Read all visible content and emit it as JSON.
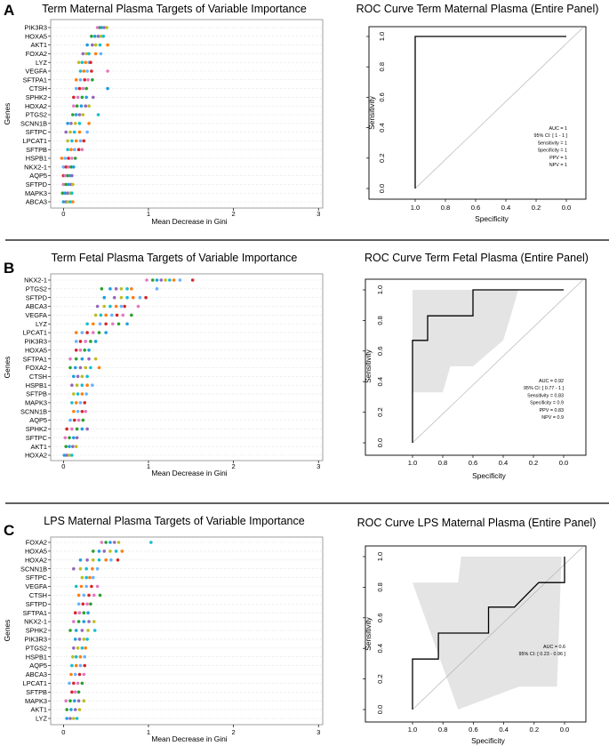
{
  "chart_data": [
    {
      "type": "scatter",
      "panel_label": "A",
      "title": "Term Maternal Plasma Targets of Variable Importance",
      "xlabel": "Mean Decrease in Gini",
      "ylabel": "Genes",
      "xlim": [
        -0.15,
        3.05
      ],
      "x_ticks": [
        "0",
        "1",
        "2",
        "3"
      ],
      "genes": [
        {
          "name": "PIK3R3",
          "values": [
            0.4,
            0.43,
            0.45,
            0.48,
            0.51
          ]
        },
        {
          "name": "HOXA5",
          "values": [
            0.33,
            0.37,
            0.41,
            0.44,
            0.47
          ]
        },
        {
          "name": "AKT1",
          "values": [
            0.28,
            0.34,
            0.38,
            0.43,
            0.52
          ]
        },
        {
          "name": "FOXA2",
          "values": [
            0.23,
            0.27,
            0.3,
            0.38,
            0.44
          ]
        },
        {
          "name": "LYZ",
          "values": [
            0.18,
            0.22,
            0.26,
            0.3,
            0.32
          ]
        },
        {
          "name": "VEGFA",
          "values": [
            0.2,
            0.24,
            0.28,
            0.33,
            0.52
          ]
        },
        {
          "name": "SFTPA1",
          "values": [
            0.15,
            0.2,
            0.25,
            0.29,
            0.34
          ]
        },
        {
          "name": "CTSH",
          "values": [
            0.15,
            0.19,
            0.23,
            0.27,
            0.52
          ]
        },
        {
          "name": "SPHK2",
          "values": [
            0.12,
            0.17,
            0.22,
            0.27,
            0.35
          ]
        },
        {
          "name": "HOXA2",
          "values": [
            0.12,
            0.16,
            0.21,
            0.26,
            0.3
          ]
        },
        {
          "name": "PTGS2",
          "values": [
            0.11,
            0.15,
            0.19,
            0.23,
            0.41
          ]
        },
        {
          "name": "SCNN1B",
          "values": [
            0.05,
            0.09,
            0.14,
            0.19,
            0.3
          ]
        },
        {
          "name": "SFTPC",
          "values": [
            0.03,
            0.08,
            0.13,
            0.19,
            0.28
          ]
        },
        {
          "name": "LPCAT1",
          "values": [
            0.05,
            0.1,
            0.15,
            0.2,
            0.24
          ]
        },
        {
          "name": "SFTPB",
          "values": [
            0.05,
            0.09,
            0.13,
            0.18,
            0.22
          ]
        },
        {
          "name": "HSPB1",
          "values": [
            -0.02,
            0.02,
            0.06,
            0.1,
            0.14
          ]
        },
        {
          "name": "NKX2-1",
          "values": [
            0.0,
            0.03,
            0.06,
            0.09,
            0.12
          ]
        },
        {
          "name": "AQP5",
          "values": [
            0.0,
            0.02,
            0.05,
            0.08,
            0.1
          ]
        },
        {
          "name": "SFTPD",
          "values": [
            0.0,
            0.03,
            0.06,
            0.09,
            0.11
          ]
        },
        {
          "name": "MAPK3",
          "values": [
            -0.01,
            0.02,
            0.05,
            0.08,
            0.1
          ]
        },
        {
          "name": "ABCA3",
          "values": [
            0.0,
            0.03,
            0.05,
            0.08,
            0.11
          ]
        }
      ]
    },
    {
      "type": "line",
      "panel_label": "",
      "title": "ROC Curve Term Maternal Plasma (Entire Panel)",
      "xlabel": "Specificity",
      "ylabel": "Sensitivity",
      "x_ticks": [
        "1.0",
        "0.8",
        "0.6",
        "0.4",
        "0.2",
        "0.0"
      ],
      "y_ticks": [
        "0.0",
        "0.2",
        "0.4",
        "0.6",
        "0.8",
        "1.0"
      ],
      "curve": [
        [
          1.0,
          0.0
        ],
        [
          1.0,
          1.0
        ],
        [
          0.0,
          1.0
        ]
      ],
      "ci_band": [],
      "stats": [
        "AUC = 1",
        "95% CI: [ 1 - 1 ]",
        "Sensitivity = 1",
        "Specificity = 1",
        "PPV = 1",
        "NPV = 1"
      ]
    },
    {
      "type": "scatter",
      "panel_label": "B",
      "title": "Term Fetal Plasma Targets of Variable Importance",
      "xlabel": "Mean Decrease in Gini",
      "ylabel": "Genes",
      "xlim": [
        -0.15,
        3.05
      ],
      "x_ticks": [
        "0",
        "1",
        "2",
        "3"
      ],
      "genes": [
        {
          "name": "NKX2-1",
          "values": [
            0.98,
            1.05,
            1.1,
            1.15,
            1.2,
            1.25,
            1.3,
            1.37,
            1.52
          ]
        },
        {
          "name": "PTGS2",
          "values": [
            0.45,
            0.55,
            0.62,
            0.68,
            0.75,
            0.8,
            1.1
          ]
        },
        {
          "name": "SFTPD",
          "values": [
            0.48,
            0.6,
            0.68,
            0.75,
            0.82,
            0.9,
            0.97
          ]
        },
        {
          "name": "ABCA3",
          "values": [
            0.4,
            0.48,
            0.55,
            0.62,
            0.68,
            0.72,
            0.88
          ]
        },
        {
          "name": "VEGFA",
          "values": [
            0.38,
            0.44,
            0.5,
            0.57,
            0.63,
            0.7,
            0.8
          ]
        },
        {
          "name": "LYZ",
          "values": [
            0.28,
            0.35,
            0.43,
            0.5,
            0.58,
            0.65,
            0.75
          ]
        },
        {
          "name": "LPCAT1",
          "values": [
            0.15,
            0.22,
            0.28,
            0.35,
            0.42,
            0.5
          ]
        },
        {
          "name": "PIK3R3",
          "values": [
            0.15,
            0.2,
            0.26,
            0.32,
            0.38
          ]
        },
        {
          "name": "HOXA5",
          "values": [
            0.15,
            0.2,
            0.25,
            0.3
          ]
        },
        {
          "name": "SFTPA1",
          "values": [
            0.08,
            0.15,
            0.22,
            0.3,
            0.38
          ]
        },
        {
          "name": "FOXA2",
          "values": [
            0.08,
            0.14,
            0.2,
            0.26,
            0.32,
            0.42
          ]
        },
        {
          "name": "CTSH",
          "values": [
            0.12,
            0.17,
            0.22,
            0.28
          ]
        },
        {
          "name": "HSPB1",
          "values": [
            0.1,
            0.16,
            0.22,
            0.28,
            0.34
          ]
        },
        {
          "name": "SFTPB",
          "values": [
            0.12,
            0.17,
            0.22,
            0.27
          ]
        },
        {
          "name": "MAPK3",
          "values": [
            0.1,
            0.15,
            0.2,
            0.25
          ]
        },
        {
          "name": "SCNN1B",
          "values": [
            0.12,
            0.17,
            0.22,
            0.26
          ]
        },
        {
          "name": "AQP5",
          "values": [
            0.08,
            0.13,
            0.18,
            0.23
          ]
        },
        {
          "name": "SPHK2",
          "values": [
            0.04,
            0.1,
            0.16,
            0.22,
            0.28
          ]
        },
        {
          "name": "SFTPC",
          "values": [
            0.02,
            0.07,
            0.12,
            0.16
          ]
        },
        {
          "name": "AKT1",
          "values": [
            0.03,
            0.07,
            0.11,
            0.15
          ]
        },
        {
          "name": "HOXA2",
          "values": [
            0.01,
            0.04,
            0.07,
            0.1
          ]
        }
      ]
    },
    {
      "type": "line",
      "panel_label": "",
      "title": "ROC Curve Term Fetal Plasma (Entire Panel)",
      "xlabel": "Specificity",
      "ylabel": "Sensitivity",
      "x_ticks": [
        "1.0",
        "0.8",
        "0.6",
        "0.4",
        "0.2",
        "0.0"
      ],
      "y_ticks": [
        "0.0",
        "0.2",
        "0.4",
        "0.6",
        "0.8",
        "1.0"
      ],
      "curve": [
        [
          1.0,
          0.0
        ],
        [
          1.0,
          0.67
        ],
        [
          0.9,
          0.67
        ],
        [
          0.9,
          0.83
        ],
        [
          0.6,
          0.83
        ],
        [
          0.6,
          1.0
        ],
        [
          0.0,
          1.0
        ]
      ],
      "ci_band": [
        [
          1.0,
          0.33
        ],
        [
          1.0,
          1.0
        ],
        [
          0.3,
          1.0
        ],
        [
          0.35,
          0.83
        ],
        [
          0.4,
          0.67
        ],
        [
          0.6,
          0.5
        ],
        [
          0.75,
          0.5
        ],
        [
          0.8,
          0.33
        ]
      ],
      "stats": [
        "AUC = 0.92",
        "95% CI: [ 0.77 - 1 ]",
        "Sensitivity = 0.83",
        "Specificity = 0.9",
        "PPV = 0.83",
        "NPV = 0.9"
      ]
    },
    {
      "type": "scatter",
      "panel_label": "C",
      "title": "LPS Maternal Plasma Targets of Variable Importance",
      "xlabel": "Mean Decrease in Gini",
      "ylabel": "Genes",
      "xlim": [
        -0.15,
        3.05
      ],
      "x_ticks": [
        "0",
        "1",
        "2",
        "3"
      ],
      "genes": [
        {
          "name": "FOXA2",
          "values": [
            0.45,
            0.5,
            0.55,
            0.6,
            0.65,
            1.03
          ]
        },
        {
          "name": "HOXA5",
          "values": [
            0.35,
            0.42,
            0.48,
            0.55,
            0.62,
            0.69
          ]
        },
        {
          "name": "HOXA2",
          "values": [
            0.2,
            0.28,
            0.35,
            0.42,
            0.5,
            0.56,
            0.64
          ]
        },
        {
          "name": "SCNN1B",
          "values": [
            0.12,
            0.2,
            0.27,
            0.34,
            0.4
          ]
        },
        {
          "name": "SFTPC",
          "values": [
            0.22,
            0.27,
            0.31,
            0.35
          ]
        },
        {
          "name": "VEGFA",
          "values": [
            0.15,
            0.21,
            0.27,
            0.33,
            0.4
          ]
        },
        {
          "name": "CTSH",
          "values": [
            0.18,
            0.24,
            0.3,
            0.36,
            0.43
          ]
        },
        {
          "name": "SFTPD",
          "values": [
            0.18,
            0.23,
            0.28,
            0.32
          ]
        },
        {
          "name": "SFTPA1",
          "values": [
            0.14,
            0.19,
            0.24,
            0.29
          ]
        },
        {
          "name": "NKX2-1",
          "values": [
            0.12,
            0.18,
            0.24,
            0.3,
            0.36
          ]
        },
        {
          "name": "SPHK2",
          "values": [
            0.08,
            0.15,
            0.22,
            0.29,
            0.37
          ]
        },
        {
          "name": "PIK3R3",
          "values": [
            0.14,
            0.19,
            0.24,
            0.28
          ]
        },
        {
          "name": "PTGS2",
          "values": [
            0.12,
            0.17,
            0.22,
            0.26
          ]
        },
        {
          "name": "HSPB1",
          "values": [
            0.11,
            0.15,
            0.2,
            0.25
          ]
        },
        {
          "name": "AQP5",
          "values": [
            0.1,
            0.15,
            0.2,
            0.25
          ]
        },
        {
          "name": "ABCA3",
          "values": [
            0.09,
            0.14,
            0.19,
            0.24
          ]
        },
        {
          "name": "LPCAT1",
          "values": [
            0.07,
            0.12,
            0.17,
            0.22
          ]
        },
        {
          "name": "SFTPB",
          "values": [
            0.1,
            0.14,
            0.18
          ]
        },
        {
          "name": "MAPK3",
          "values": [
            0.03,
            0.08,
            0.13,
            0.18,
            0.24
          ]
        },
        {
          "name": "AKT1",
          "values": [
            0.04,
            0.09,
            0.14,
            0.19
          ]
        },
        {
          "name": "LYZ",
          "values": [
            0.04,
            0.08,
            0.12,
            0.16
          ]
        }
      ]
    },
    {
      "type": "line",
      "panel_label": "",
      "title": "ROC Curve LPS Maternal Plasma (Entire Panel)",
      "xlabel": "Specificity",
      "ylabel": "Sensitivity",
      "x_ticks": [
        "1.0",
        "0.8",
        "0.6",
        "0.4",
        "0.2",
        "0.0"
      ],
      "y_ticks": [
        "0.0",
        "0.2",
        "0.4",
        "0.6",
        "0.8",
        "1.0"
      ],
      "curve": [
        [
          1.0,
          0.0
        ],
        [
          1.0,
          0.33
        ],
        [
          0.83,
          0.33
        ],
        [
          0.83,
          0.5
        ],
        [
          0.5,
          0.5
        ],
        [
          0.5,
          0.67
        ],
        [
          0.33,
          0.67
        ],
        [
          0.17,
          0.83
        ],
        [
          0.0,
          0.83
        ],
        [
          0.0,
          1.0
        ]
      ],
      "ci_band": [
        [
          1.0,
          0.83
        ],
        [
          0.7,
          0.83
        ],
        [
          0.68,
          1.0
        ],
        [
          0.02,
          1.0
        ],
        [
          0.05,
          0.15
        ],
        [
          0.3,
          0.15
        ],
        [
          0.7,
          0.0
        ]
      ],
      "stats": [
        "AUC = 0.6",
        "95% CI: [ 0.23 - 0.96 ]"
      ]
    }
  ],
  "dot_colors": [
    "#e377c2",
    "#2ca02c",
    "#1f9ee0",
    "#9467bd",
    "#bcbd22",
    "#17becf",
    "#ff7f0e",
    "#66b3ff",
    "#d62728"
  ]
}
